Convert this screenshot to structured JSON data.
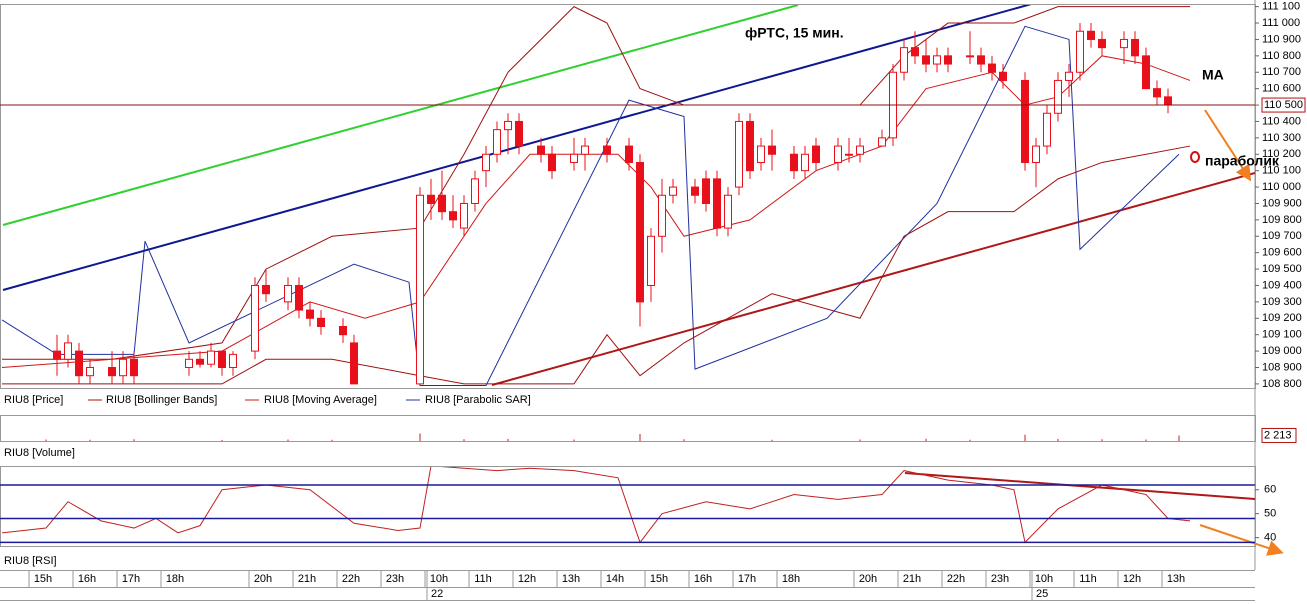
{
  "chart_data": {
    "type": "candlestick",
    "title": "фРТС, 15 мин.",
    "annotations": [
      "MA",
      "параболик"
    ],
    "price": {
      "ylim": [
        108775,
        111110
      ],
      "yticks": [
        {
          "value": 108800,
          "label": "108 800"
        },
        {
          "value": 108900,
          "label": "108 900"
        },
        {
          "value": 109000,
          "label": "109 000"
        },
        {
          "value": 109100,
          "label": "109 100"
        },
        {
          "value": 109200,
          "label": "109 200"
        },
        {
          "value": 109300,
          "label": "109 300"
        },
        {
          "value": 109400,
          "label": "109 400"
        },
        {
          "value": 109500,
          "label": "109 500"
        },
        {
          "value": 109600,
          "label": "109 600"
        },
        {
          "value": 109700,
          "label": "109 700"
        },
        {
          "value": 109800,
          "label": "109 800"
        },
        {
          "value": 109900,
          "label": "109 900"
        },
        {
          "value": 110000,
          "label": "110 000"
        },
        {
          "value": 110100,
          "label": "110 100"
        },
        {
          "value": 110200,
          "label": "110 200"
        },
        {
          "value": 110300,
          "label": "110 300"
        },
        {
          "value": 110400,
          "label": "110 400"
        },
        {
          "value": 110500,
          "label": "110 500"
        },
        {
          "value": 110600,
          "label": "110 600"
        },
        {
          "value": 110700,
          "label": "110 700"
        },
        {
          "value": 110800,
          "label": "110 800"
        },
        {
          "value": 110900,
          "label": "110 900"
        },
        {
          "value": 111000,
          "label": "111 000"
        },
        {
          "value": 111100,
          "label": "111 100"
        }
      ],
      "last": {
        "value": 110500,
        "label": "110 500"
      },
      "candles_name": "RIU8 [Price]",
      "up_color": "#ffffff",
      "down_color": "#e8101a",
      "candles": [
        [
          5,
          109000,
          109100,
          108850,
          108950
        ],
        [
          6,
          108950,
          109100,
          108900,
          109050
        ],
        [
          7,
          109000,
          109050,
          108800,
          108850
        ],
        [
          8,
          108850,
          108950,
          108800,
          108900
        ],
        [
          10,
          108900,
          109000,
          108800,
          108850
        ],
        [
          11,
          108850,
          109000,
          108800,
          108950
        ],
        [
          12,
          108950,
          109000,
          108800,
          108850
        ],
        [
          17,
          108900,
          109000,
          108850,
          108950
        ],
        [
          18,
          108950,
          109000,
          108900,
          108920
        ],
        [
          19,
          108920,
          109050,
          108900,
          109000
        ],
        [
          20,
          109000,
          109000,
          108850,
          108900
        ],
        [
          21,
          108900,
          109000,
          108850,
          108980
        ],
        [
          23,
          109000,
          109450,
          108950,
          109400
        ],
        [
          24,
          109400,
          109500,
          109300,
          109350
        ],
        [
          26,
          109300,
          109450,
          109250,
          109400
        ],
        [
          27,
          109400,
          109450,
          109200,
          109250
        ],
        [
          28,
          109250,
          109300,
          109150,
          109200
        ],
        [
          29,
          109200,
          109250,
          109100,
          109150
        ],
        [
          31,
          109150,
          109200,
          109050,
          109100
        ],
        [
          32,
          109050,
          109100,
          108800,
          108800
        ],
        [
          38,
          108800,
          110000,
          108800,
          109950
        ],
        [
          39,
          109950,
          110050,
          109800,
          109900
        ],
        [
          40,
          109950,
          110100,
          109800,
          109850
        ],
        [
          41,
          109850,
          109950,
          109750,
          109800
        ],
        [
          42,
          109750,
          109950,
          109700,
          109900
        ],
        [
          43,
          109900,
          110100,
          109850,
          110050
        ],
        [
          44,
          110100,
          110250,
          110000,
          110200
        ],
        [
          45,
          110200,
          110400,
          110150,
          110350
        ],
        [
          46,
          110350,
          110450,
          110200,
          110400
        ],
        [
          47,
          110400,
          110450,
          110200,
          110250
        ],
        [
          49,
          110250,
          110300,
          110150,
          110200
        ],
        [
          50,
          110200,
          110250,
          110050,
          110100
        ],
        [
          52,
          110150,
          110300,
          110100,
          110200
        ],
        [
          53,
          110200,
          110300,
          110100,
          110250
        ],
        [
          55,
          110250,
          110300,
          110150,
          110200
        ],
        [
          57,
          110250,
          110300,
          110100,
          110150
        ],
        [
          58,
          110150,
          110200,
          109150,
          109300
        ],
        [
          59,
          109400,
          109750,
          109300,
          109700
        ],
        [
          60,
          109700,
          110050,
          109600,
          109950
        ],
        [
          61,
          109950,
          110050,
          109900,
          110000
        ],
        [
          63,
          110000,
          110050,
          109900,
          109950
        ],
        [
          64,
          110050,
          110100,
          109850,
          109900
        ],
        [
          65,
          110050,
          110100,
          109700,
          109750
        ],
        [
          66,
          109750,
          110000,
          109700,
          109950
        ],
        [
          67,
          110000,
          110450,
          109950,
          110400
        ],
        [
          68,
          110400,
          110450,
          110050,
          110100
        ],
        [
          69,
          110150,
          110300,
          110100,
          110250
        ],
        [
          70,
          110250,
          110350,
          110100,
          110200
        ],
        [
          72,
          110200,
          110250,
          110050,
          110100
        ],
        [
          73,
          110100,
          110250,
          110050,
          110200
        ],
        [
          74,
          110250,
          110300,
          110100,
          110150
        ],
        [
          76,
          110150,
          110300,
          110100,
          110250
        ],
        [
          77,
          110200,
          110300,
          110150,
          110200
        ],
        [
          78,
          110200,
          110300,
          110150,
          110250
        ],
        [
          80,
          110250,
          110350,
          110250,
          110300
        ],
        [
          81,
          110300,
          110750,
          110250,
          110700
        ],
        [
          82,
          110700,
          110900,
          110650,
          110850
        ],
        [
          83,
          110850,
          110950,
          110750,
          110800
        ],
        [
          84,
          110800,
          110900,
          110700,
          110750
        ],
        [
          85,
          110750,
          110850,
          110700,
          110800
        ],
        [
          86,
          110800,
          110850,
          110700,
          110750
        ],
        [
          88,
          110800,
          110950,
          110750,
          110800
        ],
        [
          89,
          110800,
          110850,
          110700,
          110750
        ],
        [
          90,
          110750,
          110800,
          110650,
          110700
        ],
        [
          91,
          110700,
          110750,
          110600,
          110650
        ],
        [
          93,
          110650,
          110700,
          110100,
          110150
        ],
        [
          94,
          110150,
          110300,
          110000,
          110250
        ],
        [
          95,
          110250,
          110500,
          110200,
          110450
        ],
        [
          96,
          110450,
          110700,
          110400,
          110650
        ],
        [
          97,
          110650,
          110750,
          110550,
          110700
        ],
        [
          98,
          110700,
          111000,
          110650,
          110950
        ],
        [
          99,
          110950,
          111000,
          110850,
          110900
        ],
        [
          100,
          110900,
          110950,
          110800,
          110850
        ],
        [
          102,
          110850,
          110950,
          110750,
          110900
        ],
        [
          103,
          110900,
          110950,
          110750,
          110800
        ],
        [
          104,
          110800,
          110850,
          110600,
          110600
        ],
        [
          105,
          110600,
          110650,
          110500,
          110550
        ],
        [
          106,
          110550,
          110600,
          110450,
          110500
        ]
      ],
      "bands": {
        "name": "RIU8 [Bollinger Bands]",
        "color": "#a01010",
        "x": [
          0,
          10,
          20,
          24,
          30,
          38,
          42,
          46,
          52,
          55,
          58,
          62,
          70,
          78,
          82,
          86,
          92,
          96,
          100,
          108
        ],
        "upper": [
          108950,
          108950,
          109050,
          109500,
          109700,
          109750,
          110200,
          110700,
          111100,
          111000,
          110600,
          110500,
          110500,
          110500,
          110800,
          111000,
          111000,
          111100,
          111100,
          111100
        ],
        "lower": [
          108800,
          108800,
          108800,
          108950,
          108950,
          108850,
          108800,
          108800,
          108800,
          109100,
          108850,
          109050,
          109350,
          109200,
          109700,
          109850,
          109850,
          110050,
          110150,
          110250
        ]
      },
      "ma": {
        "name": "RIU8 [Moving Average]",
        "color": "#d01818",
        "x": [
          0,
          20,
          28,
          33,
          38,
          44,
          48,
          56,
          59,
          62,
          68,
          74,
          80,
          84,
          90,
          93,
          96,
          100,
          104,
          108
        ],
        "values": [
          108900,
          109000,
          109300,
          109200,
          109300,
          109900,
          110200,
          110200,
          110000,
          109700,
          109800,
          110100,
          110250,
          110600,
          110700,
          110500,
          110550,
          110800,
          110750,
          110650
        ]
      },
      "sar": {
        "name": "RIU8 [Parabolic SAR]",
        "color": "#2030a0",
        "x": [
          0,
          5,
          12,
          13,
          17,
          32,
          37,
          38,
          44,
          57,
          62,
          63,
          75,
          85,
          93,
          97,
          98,
          107
        ],
        "values": [
          109190,
          108980,
          108980,
          109670,
          109050,
          109530,
          109420,
          108790,
          108790,
          110530,
          110430,
          108890,
          109200,
          109900,
          110980,
          110900,
          109620,
          110200
        ]
      }
    },
    "volume": {
      "name": "RIU8 [Volume]",
      "ylim": [
        0,
        10000
      ],
      "last": {
        "value": 2213,
        "label": "2 213"
      },
      "color": "#c02020",
      "x": [
        4,
        8,
        12,
        20,
        26,
        30,
        38,
        42,
        46,
        52,
        58,
        62,
        70,
        78,
        84,
        88,
        93,
        96,
        100,
        104,
        107
      ],
      "values": [
        600,
        500,
        700,
        400,
        600,
        500,
        3000,
        700,
        800,
        600,
        2800,
        700,
        500,
        600,
        900,
        500,
        2500,
        800,
        700,
        600,
        2213
      ]
    },
    "rsi": {
      "name": "RIU8 [RSI]",
      "ylim": [
        36.5,
        69.5
      ],
      "yticks": [
        40,
        50,
        60
      ],
      "levels": [
        62,
        48,
        38
      ],
      "color": "#c02020",
      "level_color": "#1a1a9a",
      "x": [
        0,
        4,
        6,
        9,
        12,
        14,
        16,
        18,
        20,
        24,
        28,
        32,
        36,
        38,
        39,
        42,
        45,
        48,
        52,
        56,
        58,
        60,
        64,
        68,
        72,
        76,
        80,
        82,
        86,
        90,
        92,
        93,
        96,
        100,
        104,
        106,
        108
      ],
      "values": [
        42,
        44,
        55,
        47,
        44,
        48,
        42,
        45,
        60,
        62,
        60,
        46,
        43,
        44,
        70,
        69,
        68,
        69,
        68,
        65,
        38,
        50,
        55,
        52,
        58,
        56,
        58,
        68,
        64,
        62,
        60,
        38,
        52,
        62,
        58,
        48,
        47
      ]
    },
    "xticks": [
      {
        "value": 4,
        "label": "15h"
      },
      {
        "value": 8,
        "label": "16h"
      },
      {
        "value": 12,
        "label": "17h"
      },
      {
        "value": 16,
        "label": "18h"
      },
      {
        "value": 24,
        "label": "20h"
      },
      {
        "value": 28,
        "label": "21h"
      },
      {
        "value": 32,
        "label": "22h"
      },
      {
        "value": 36,
        "label": "23h"
      },
      {
        "value": 40,
        "label": "10h"
      },
      {
        "value": 44,
        "label": "11h"
      },
      {
        "value": 48,
        "label": "12h"
      },
      {
        "value": 52,
        "label": "13h"
      },
      {
        "value": 56,
        "label": "14h"
      },
      {
        "value": 60,
        "label": "15h"
      },
      {
        "value": 64,
        "label": "16h"
      },
      {
        "value": 68,
        "label": "17h"
      },
      {
        "value": 72,
        "label": "18h"
      },
      {
        "value": 79,
        "label": "20h"
      },
      {
        "value": 83,
        "label": "21h"
      },
      {
        "value": 87,
        "label": "22h"
      },
      {
        "value": 91,
        "label": "23h"
      },
      {
        "value": 95,
        "label": "10h"
      },
      {
        "value": 99,
        "label": "11h"
      },
      {
        "value": 103,
        "label": "12h"
      },
      {
        "value": 107,
        "label": "13h"
      }
    ],
    "dates": [
      {
        "value": 39,
        "label": "22"
      },
      {
        "value": 94,
        "label": "25"
      }
    ]
  }
}
